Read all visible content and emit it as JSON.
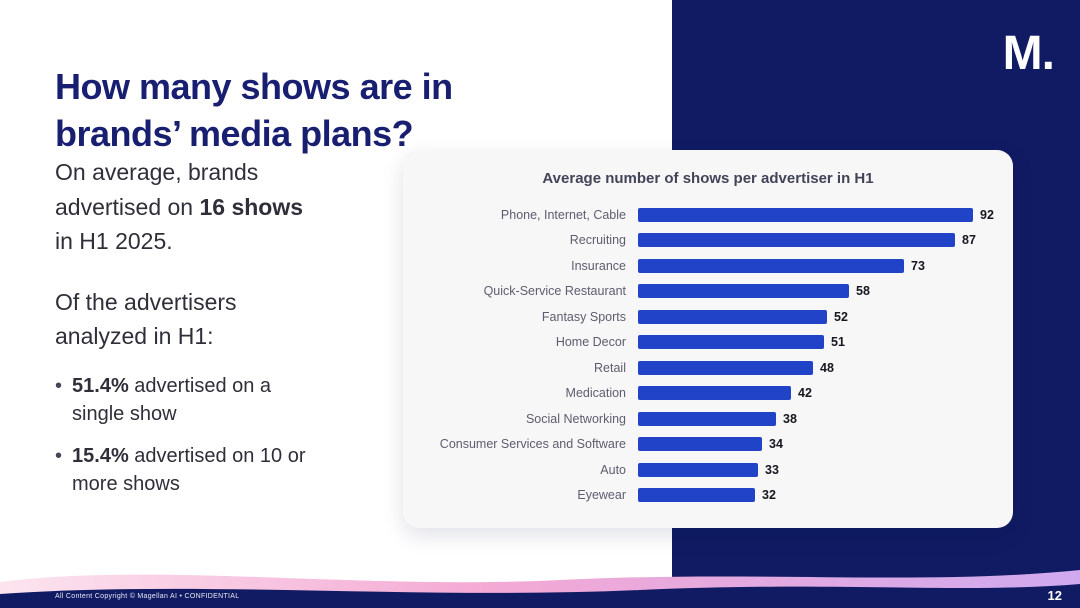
{
  "slide": {
    "title": "How many shows are in brands’ media plans?",
    "intro": {
      "prefix": "On average, brands advertised on ",
      "bold": "16 shows",
      "suffix": " in H1 2025."
    },
    "subhead": "Of the advertisers analyzed in H1:",
    "bullets": [
      {
        "dot": "•",
        "bold": "51.4%",
        "text": " advertised on a single show"
      },
      {
        "dot": "•",
        "bold": "15.4%",
        "text": " advertised on 10 or more shows"
      }
    ],
    "logo": "M.",
    "footer": "All Content Copyright © Magellan AI • CONFIDENTIAL",
    "page_number": "12"
  },
  "chart_data": {
    "type": "bar",
    "orientation": "horizontal",
    "title": "Average number of shows per advertiser in H1",
    "categories": [
      "Phone, Internet, Cable",
      "Recruiting",
      "Insurance",
      "Quick-Service Restaurant",
      "Fantasy Sports",
      "Home Decor",
      "Retail",
      "Medication",
      "Social Networking",
      "Consumer Services and Software",
      "Auto",
      "Eyewear"
    ],
    "values": [
      92,
      87,
      73,
      58,
      52,
      51,
      48,
      42,
      38,
      34,
      33,
      32
    ],
    "value_labels_shown": true,
    "xlim": [
      0,
      95
    ],
    "grid": false,
    "legend": "none",
    "bar_color": "#2143c8"
  },
  "colors": {
    "navy_panel": "#101b63",
    "title_text": "#191f70",
    "bar_blue": "#2143c8",
    "wave_pink": "#f4a9d4",
    "card_bg": "#f7f7f8"
  }
}
